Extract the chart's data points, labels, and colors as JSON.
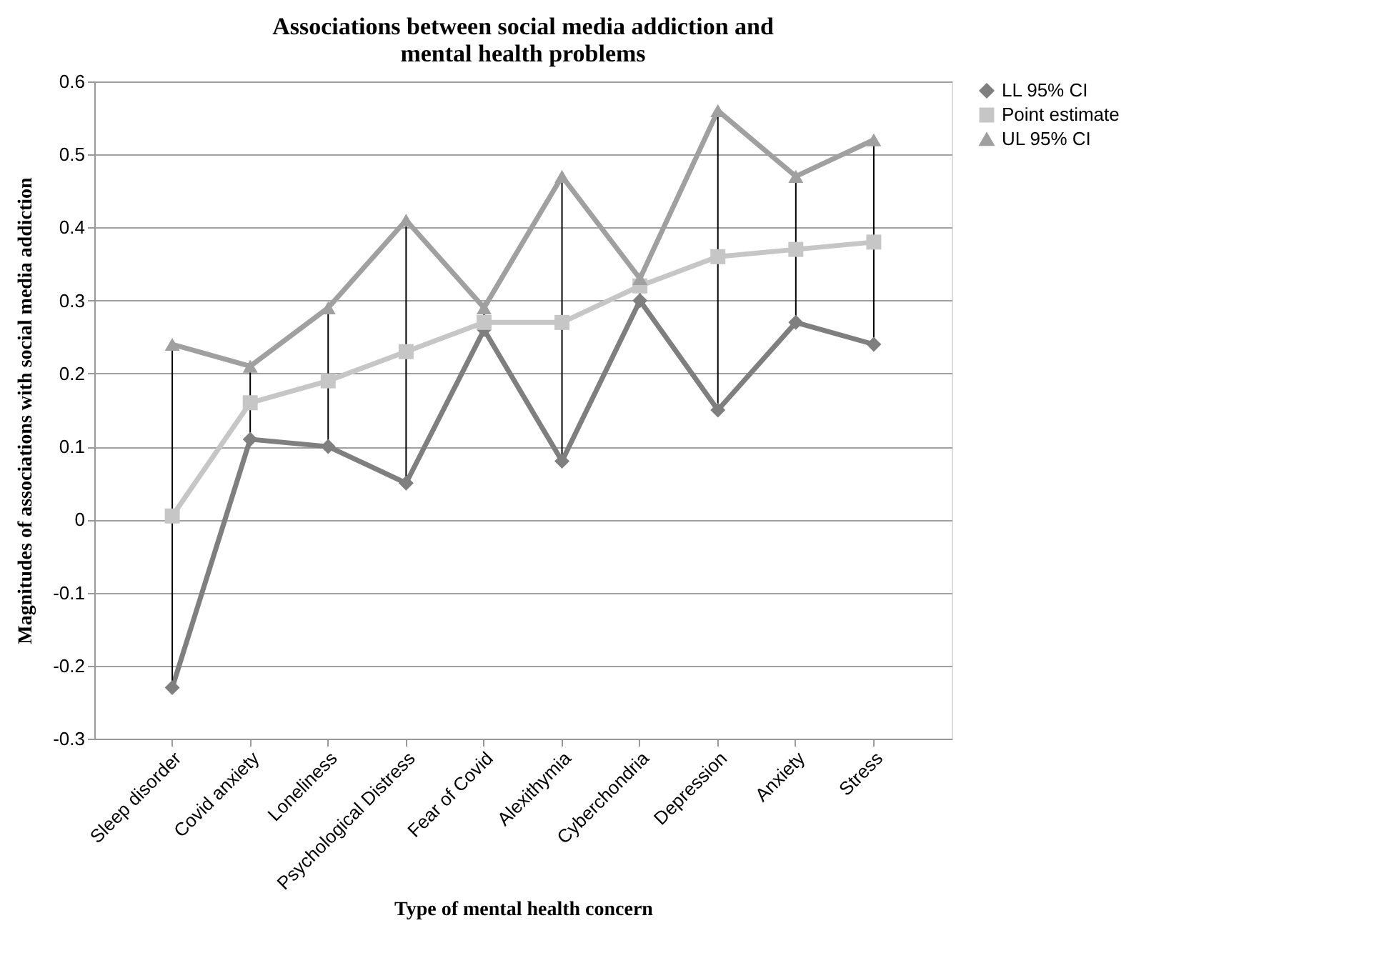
{
  "chart_data": {
    "type": "line",
    "title": "Associations between social media addiction and mental health problems",
    "xlabel": "Type of mental health concern",
    "ylabel": "Magnitudes of associations with social media addiction",
    "categories": [
      "Sleep disorder",
      "Covid anxiety",
      "Loneliness",
      "Psychological Distress",
      "Fear of Covid",
      "Alexithymia",
      "Cyberchondria",
      "Depression",
      "Anxiety",
      "Stress"
    ],
    "series": [
      {
        "name": "LL 95% CI",
        "color": "#7f7f7f",
        "marker": "diamond",
        "values": [
          -0.23,
          0.11,
          0.1,
          0.05,
          0.26,
          0.08,
          0.3,
          0.15,
          0.27,
          0.24
        ]
      },
      {
        "name": "Point estimate",
        "color": "#c6c6c6",
        "marker": "square",
        "values": [
          0.005,
          0.16,
          0.19,
          0.23,
          0.27,
          0.27,
          0.32,
          0.36,
          0.37,
          0.38
        ],
        "errors": [
          [
            -0.23,
            0.24
          ],
          [
            0.11,
            0.21
          ],
          [
            0.1,
            0.29
          ],
          [
            0.05,
            0.41
          ],
          [
            0.26,
            0.29
          ],
          [
            0.08,
            0.47
          ],
          [
            0.3,
            0.33
          ],
          [
            0.15,
            0.56
          ],
          [
            0.27,
            0.47
          ],
          [
            0.24,
            0.52
          ]
        ]
      },
      {
        "name": "UL 95% CI",
        "color": "#a0a0a0",
        "marker": "triangle",
        "values": [
          0.24,
          0.21,
          0.29,
          0.41,
          0.29,
          0.47,
          0.33,
          0.56,
          0.47,
          0.52
        ]
      }
    ],
    "ylim": [
      -0.3,
      0.6
    ],
    "yticks": [
      -0.3,
      -0.2,
      -0.1,
      0,
      0.1,
      0.2,
      0.3,
      0.4,
      0.5,
      0.6
    ],
    "grid": "y",
    "legend": "right",
    "line_style": "solid"
  }
}
